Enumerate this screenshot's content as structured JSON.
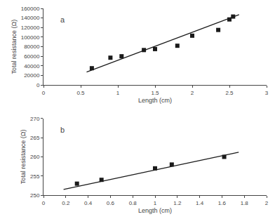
{
  "chart_data": [
    {
      "type": "scatter",
      "annotations": [
        "a"
      ],
      "xlabel": "Length (cm)",
      "ylabel": "Total resistance (Ω)",
      "series": [
        {
          "type": "line",
          "line_style": "solid",
          "color": "#1a1a1a",
          "x": [
            0.58,
            2.63
          ],
          "values": [
            27000,
            147000
          ]
        },
        {
          "type": "scatter",
          "marker": "square",
          "color": "#1a1a1a",
          "x": [
            0.65,
            0.9,
            1.05,
            1.35,
            1.5,
            1.8,
            2.0,
            2.35,
            2.5,
            2.55
          ],
          "values": [
            35000,
            57000,
            60000,
            73000,
            75000,
            82000,
            103000,
            115000,
            137000,
            143000
          ]
        }
      ],
      "xlim": [
        0,
        3
      ],
      "ylim": [
        0,
        160000
      ],
      "xticks": [
        0,
        0.5,
        1,
        1.5,
        2,
        2.5,
        3
      ],
      "yticks": [
        0,
        20000,
        40000,
        60000,
        80000,
        100000,
        120000,
        140000,
        160000
      ],
      "grid": false
    },
    {
      "type": "scatter",
      "annotations": [
        "b"
      ],
      "xlabel": "Length (cm)",
      "ylabel": "Total resistance (Ω)",
      "series": [
        {
          "type": "line",
          "line_style": "solid",
          "color": "#1a1a1a",
          "x": [
            0.18,
            1.75
          ],
          "values": [
            251.5,
            261.2
          ]
        },
        {
          "type": "scatter",
          "marker": "square",
          "color": "#1a1a1a",
          "x": [
            0.3,
            0.52,
            1.0,
            1.15,
            1.62
          ],
          "values": [
            253,
            254,
            257,
            258,
            260
          ]
        }
      ],
      "xlim": [
        0,
        2
      ],
      "ylim": [
        250,
        270
      ],
      "xticks": [
        0,
        0.2,
        0.4,
        0.6,
        0.8,
        1,
        1.2,
        1.4,
        1.6,
        1.8,
        2
      ],
      "yticks": [
        250,
        255,
        260,
        265,
        270
      ],
      "grid": false
    }
  ]
}
